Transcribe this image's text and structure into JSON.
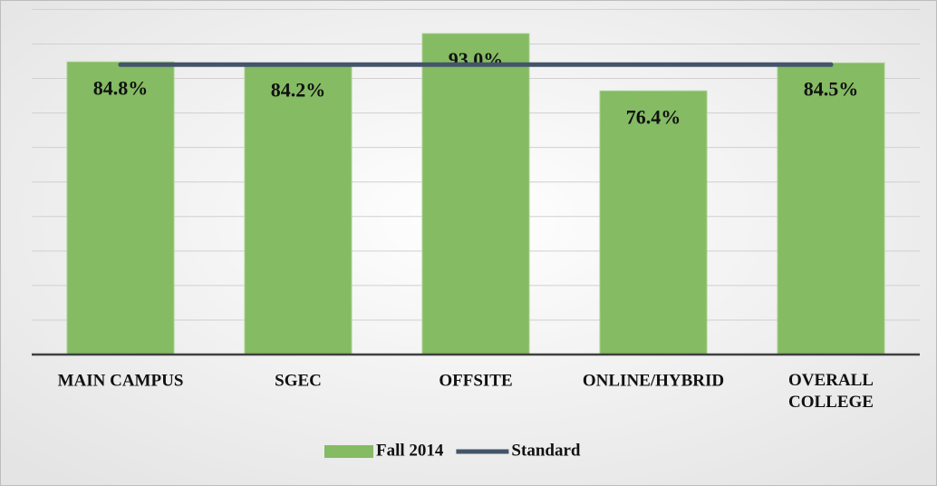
{
  "chart_data": {
    "type": "bar",
    "categories": [
      "MAIN CAMPUS",
      "SGEC",
      "OFFSITE",
      "ONLINE/HYBRID",
      "OVERALL COLLEGE"
    ],
    "series": [
      {
        "name": "Fall 2014",
        "type": "bar",
        "color": "#84bb63",
        "values": [
          84.8,
          84.2,
          93.0,
          76.4,
          84.5
        ],
        "value_labels": [
          "84.8%",
          "84.2%",
          "93.0%",
          "76.4%",
          "84.5%"
        ]
      },
      {
        "name": "Standard",
        "type": "line",
        "color": "#44546a",
        "values": [
          84,
          84,
          84,
          84,
          84
        ]
      }
    ],
    "ylim": [
      0,
      100
    ],
    "yticks": [
      0,
      10,
      20,
      30,
      40,
      50,
      60,
      70,
      80,
      90,
      100
    ],
    "grid": true,
    "legend": "bottom"
  }
}
